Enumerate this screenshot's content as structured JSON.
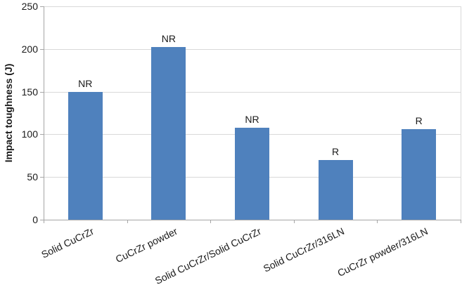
{
  "chart_data": {
    "type": "bar",
    "title": "",
    "xlabel": "",
    "ylabel": "Impact toughness (J)",
    "ylim": [
      0,
      250
    ],
    "yticks": [
      0,
      50,
      100,
      150,
      200,
      250
    ],
    "categories": [
      "Solid CuCrZr",
      "CuCrZr powder",
      "Solid CuCrZr/Solid CuCrZr",
      "Solid CuCrZr/316LN",
      "CuCrZr powder/316LN"
    ],
    "values": [
      150,
      202,
      108,
      70,
      106
    ],
    "bar_labels": [
      "NR",
      "NR",
      "NR",
      "R",
      "R"
    ],
    "grid": true,
    "legend": false,
    "colors": {
      "bar": "#4F81BD",
      "gridline": "#D9D9D9",
      "axis": "#A6A6A6",
      "text": "#1A1A1A"
    }
  }
}
